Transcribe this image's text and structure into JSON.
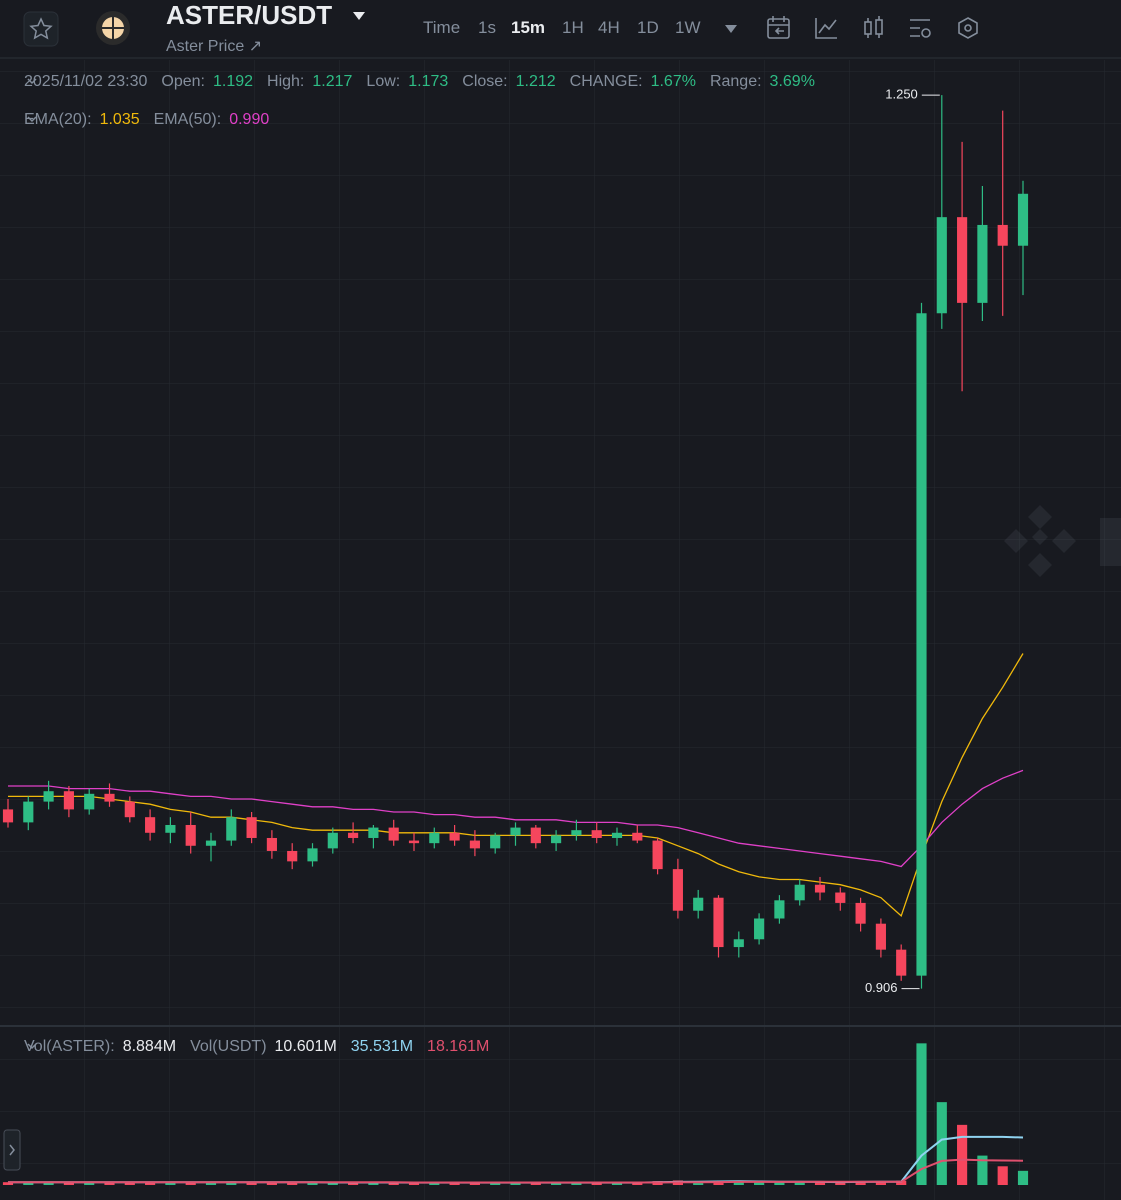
{
  "header": {
    "symbol": "ASTER/USDT",
    "subtitle": "Aster Price ↗",
    "intervals": [
      "Time",
      "1s",
      "15m",
      "1H",
      "4H",
      "1D",
      "1W"
    ],
    "active_interval": "15m"
  },
  "chart_data": [
    {
      "type": "candlestick",
      "legend": {
        "time": "2025/11/02 23:30",
        "items": [
          {
            "label": "Open:",
            "value": "1.192"
          },
          {
            "label": "High:",
            "value": "1.217"
          },
          {
            "label": "Low:",
            "value": "1.173"
          },
          {
            "label": "Close:",
            "value": "1.212"
          },
          {
            "label": "CHANGE:",
            "value": "1.67%"
          },
          {
            "label": "Range:",
            "value": "3.69%"
          }
        ]
      },
      "open": [
        0.975,
        0.97,
        0.978,
        0.982,
        0.975,
        0.981,
        0.978,
        0.972,
        0.966,
        0.969,
        0.961,
        0.963,
        0.972,
        0.964,
        0.959,
        0.955,
        0.96,
        0.966,
        0.964,
        0.968,
        0.963,
        0.962,
        0.966,
        0.963,
        0.96,
        0.965,
        0.968,
        0.962,
        0.965,
        0.967,
        0.964,
        0.966,
        0.963,
        0.952,
        0.936,
        0.941,
        0.922,
        0.925,
        0.933,
        0.94,
        0.946,
        0.943,
        0.939,
        0.931,
        0.921,
        0.911,
        1.166,
        1.203,
        1.17,
        1.2,
        1.192
      ],
      "high": [
        0.979,
        0.98,
        0.986,
        0.984,
        0.983,
        0.985,
        0.98,
        0.975,
        0.972,
        0.974,
        0.966,
        0.975,
        0.974,
        0.967,
        0.962,
        0.962,
        0.968,
        0.97,
        0.969,
        0.971,
        0.966,
        0.968,
        0.969,
        0.967,
        0.966,
        0.97,
        0.969,
        0.967,
        0.971,
        0.97,
        0.968,
        0.969,
        0.964,
        0.956,
        0.944,
        0.942,
        0.928,
        0.935,
        0.942,
        0.948,
        0.949,
        0.945,
        0.941,
        0.933,
        0.923,
        1.17,
        1.25,
        1.232,
        1.215,
        1.244,
        1.217
      ],
      "low": [
        0.968,
        0.967,
        0.975,
        0.972,
        0.973,
        0.976,
        0.97,
        0.963,
        0.962,
        0.958,
        0.955,
        0.961,
        0.962,
        0.956,
        0.952,
        0.953,
        0.958,
        0.962,
        0.96,
        0.961,
        0.959,
        0.96,
        0.961,
        0.957,
        0.958,
        0.961,
        0.96,
        0.959,
        0.963,
        0.962,
        0.961,
        0.962,
        0.95,
        0.933,
        0.933,
        0.918,
        0.918,
        0.923,
        0.931,
        0.938,
        0.94,
        0.936,
        0.928,
        0.918,
        0.909,
        0.906,
        1.16,
        1.136,
        1.163,
        1.165,
        1.173
      ],
      "close": [
        0.97,
        0.978,
        0.982,
        0.975,
        0.981,
        0.978,
        0.972,
        0.966,
        0.969,
        0.961,
        0.963,
        0.972,
        0.964,
        0.959,
        0.955,
        0.96,
        0.966,
        0.964,
        0.968,
        0.963,
        0.962,
        0.966,
        0.963,
        0.96,
        0.965,
        0.968,
        0.962,
        0.965,
        0.967,
        0.964,
        0.966,
        0.963,
        0.952,
        0.936,
        0.941,
        0.922,
        0.925,
        0.933,
        0.94,
        0.946,
        0.943,
        0.939,
        0.931,
        0.921,
        0.911,
        1.166,
        1.203,
        1.17,
        1.2,
        1.192,
        1.212
      ],
      "up_color": "#2ebd85",
      "down_color": "#f6465d",
      "ylim": [
        0.892,
        1.2635
      ],
      "annotations": [
        {
          "value": 1.25,
          "label": "1.250"
        },
        {
          "value": 0.906,
          "label": "0.906"
        }
      ],
      "indicators": [
        {
          "name": "EMA(20):",
          "value_label": "1.035",
          "color": "#f0b90b",
          "values": [
            0.98,
            0.98,
            0.98,
            0.98,
            0.98,
            0.979,
            0.978,
            0.977,
            0.975,
            0.974,
            0.972,
            0.972,
            0.971,
            0.97,
            0.968,
            0.967,
            0.967,
            0.967,
            0.967,
            0.966,
            0.966,
            0.966,
            0.966,
            0.965,
            0.965,
            0.965,
            0.965,
            0.965,
            0.965,
            0.965,
            0.965,
            0.965,
            0.964,
            0.961,
            0.958,
            0.954,
            0.951,
            0.949,
            0.948,
            0.948,
            0.947,
            0.946,
            0.944,
            0.941,
            0.934,
            0.957,
            0.978,
            0.995,
            1.01,
            1.022,
            1.035
          ]
        },
        {
          "name": "EMA(50):",
          "value_label": "0.990",
          "color": "#e040c8",
          "values": [
            0.984,
            0.984,
            0.984,
            0.983,
            0.983,
            0.983,
            0.982,
            0.982,
            0.981,
            0.98,
            0.98,
            0.979,
            0.979,
            0.978,
            0.977,
            0.976,
            0.976,
            0.975,
            0.975,
            0.974,
            0.974,
            0.973,
            0.973,
            0.972,
            0.972,
            0.971,
            0.971,
            0.971,
            0.97,
            0.97,
            0.97,
            0.969,
            0.969,
            0.968,
            0.966,
            0.964,
            0.962,
            0.961,
            0.96,
            0.959,
            0.958,
            0.957,
            0.956,
            0.955,
            0.953,
            0.961,
            0.97,
            0.977,
            0.983,
            0.987,
            0.99
          ]
        }
      ]
    },
    {
      "type": "volume",
      "legend": {
        "items": [
          {
            "label": "Vol(ASTER):",
            "value": "8.884M"
          },
          {
            "label": "Vol(USDT)",
            "value": "10.601M"
          }
        ]
      },
      "values": [
        2.1,
        1.8,
        2.6,
        1.5,
        1.9,
        2.2,
        1.7,
        2.4,
        1.6,
        2.0,
        2.3,
        2.8,
        1.9,
        1.6,
        2.2,
        1.5,
        1.8,
        2.0,
        1.7,
        1.9,
        1.6,
        1.8,
        2.1,
        1.7,
        1.5,
        1.9,
        2.0,
        1.6,
        1.8,
        1.7,
        1.9,
        1.6,
        2.9,
        3.4,
        2.2,
        3.1,
        2.5,
        2.0,
        2.3,
        2.6,
        1.9,
        2.1,
        2.4,
        2.7,
        3.2,
        106,
        62,
        45,
        22,
        14,
        10.601
      ],
      "ylim": [
        0,
        110
      ],
      "lines": [
        {
          "value_label": "35.531M",
          "color": "#8fd3f0",
          "values": [
            2.0,
            2.0,
            2.0,
            2.0,
            2.0,
            2.0,
            2.0,
            2.0,
            2.0,
            2.0,
            2.0,
            2.1,
            2.1,
            2.1,
            2.0,
            2.0,
            1.9,
            1.9,
            1.9,
            1.9,
            1.8,
            1.8,
            1.8,
            1.8,
            1.8,
            1.8,
            1.8,
            1.8,
            1.8,
            1.8,
            1.8,
            1.8,
            2.0,
            2.3,
            2.4,
            2.6,
            2.8,
            2.6,
            2.4,
            2.5,
            2.3,
            2.2,
            2.3,
            2.4,
            2.5,
            22,
            34,
            36,
            36,
            36,
            35.531
          ]
        },
        {
          "value_label": "18.161M",
          "color": "#e0506e",
          "values": [
            2.0,
            2.0,
            2.0,
            2.0,
            2.0,
            2.0,
            2.0,
            2.0,
            2.0,
            2.0,
            2.0,
            2.0,
            2.0,
            2.0,
            2.0,
            2.0,
            2.0,
            2.0,
            2.0,
            2.0,
            1.9,
            1.9,
            1.9,
            1.9,
            1.9,
            1.9,
            1.9,
            1.9,
            1.9,
            1.9,
            1.9,
            1.9,
            1.9,
            2.0,
            2.1,
            2.2,
            2.3,
            2.3,
            2.3,
            2.3,
            2.4,
            2.4,
            2.4,
            2.4,
            2.4,
            12,
            18,
            19,
            18.5,
            18.3,
            18.161
          ]
        }
      ]
    }
  ]
}
